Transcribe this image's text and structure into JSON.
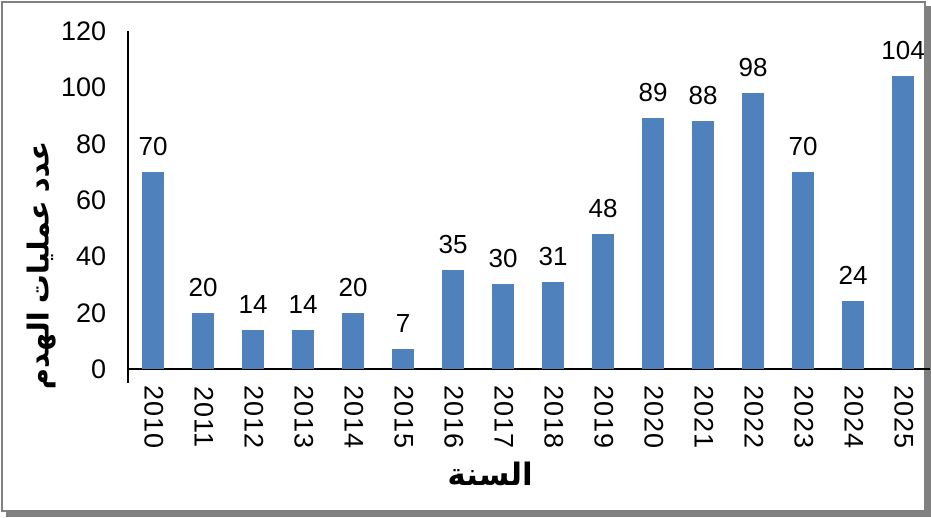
{
  "chart_data": {
    "type": "bar",
    "xlabel": "السنة",
    "ylabel": "عدد عمليات الهدم",
    "categories": [
      "2010",
      "2011",
      "2012",
      "2013",
      "2014",
      "2015",
      "2016",
      "2017",
      "2018",
      "2019",
      "2020",
      "2021",
      "2022",
      "2023",
      "2024",
      "2025"
    ],
    "values": [
      70,
      20,
      14,
      14,
      20,
      7,
      35,
      30,
      31,
      48,
      89,
      88,
      98,
      70,
      24,
      104
    ],
    "ylim": [
      0,
      120
    ],
    "yticks": [
      0,
      20,
      40,
      60,
      80,
      100,
      120
    ],
    "grid": false,
    "legend": false,
    "data_labels": true,
    "colors": {
      "bar": "#4F81BD",
      "axis": "#000000",
      "text": "#000000",
      "frame_border": "#808080"
    }
  }
}
